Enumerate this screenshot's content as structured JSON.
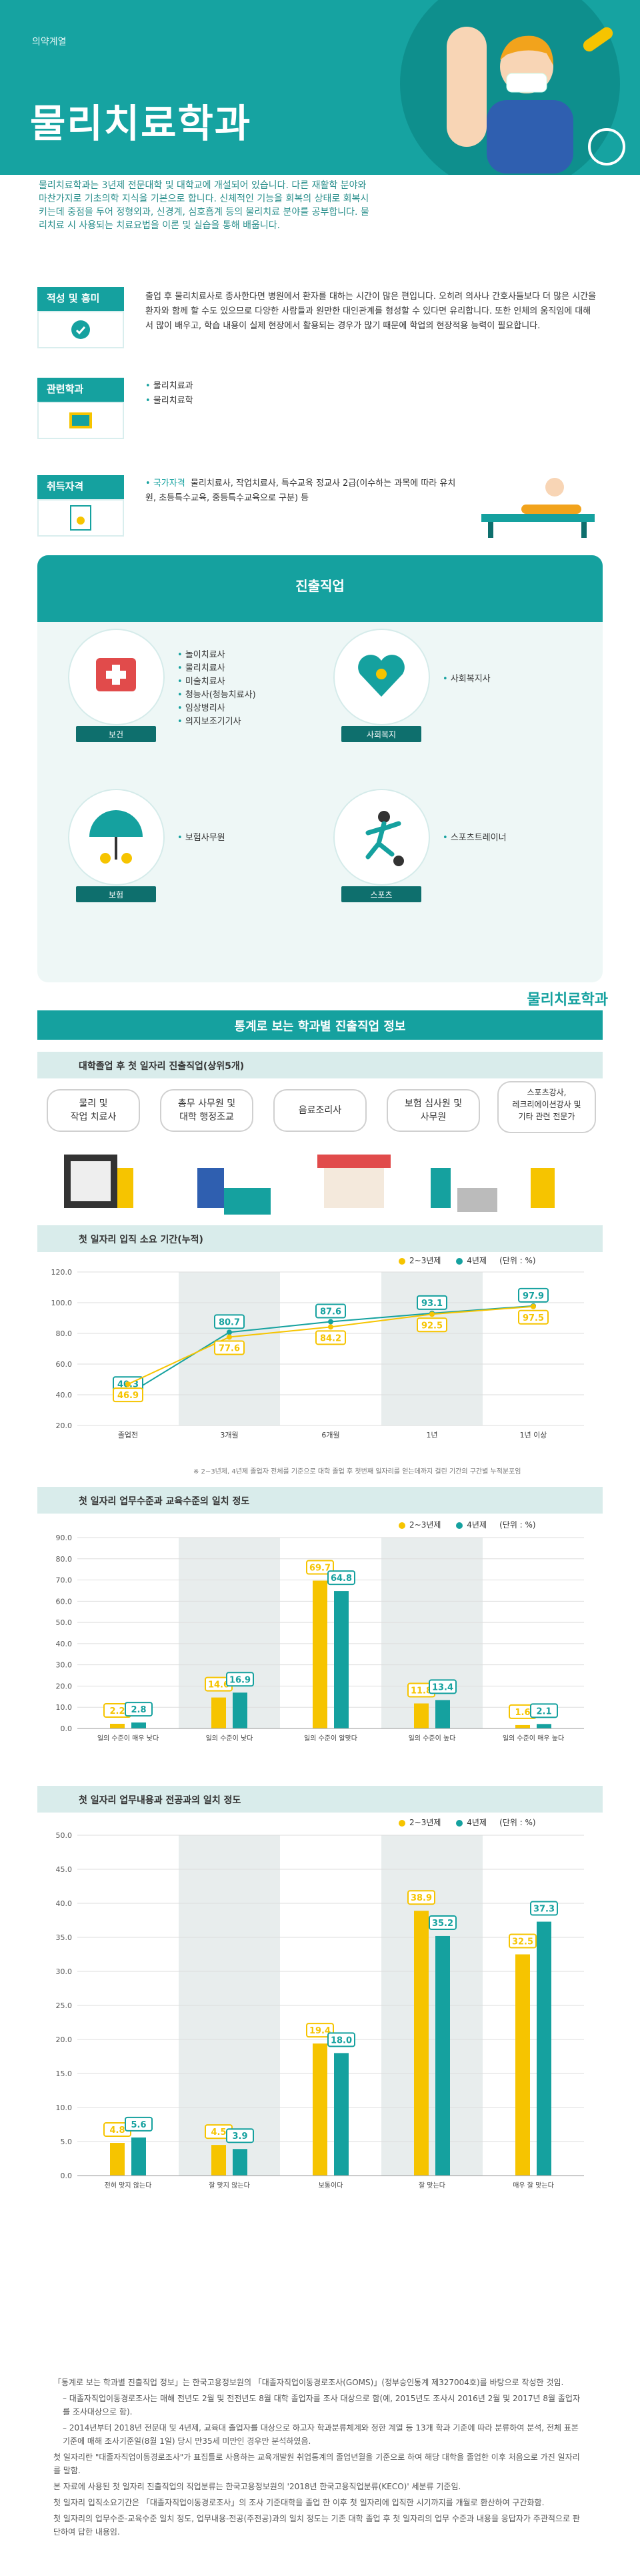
{
  "hero": {
    "department": "의약계열",
    "title": "물리치료학과",
    "intro": "물리치료학과는 3년제 전문대학 및 대학교에 개설되어 있습니다. 다른 재활학 분야와 마찬가지로 기초의학 지식을 기본으로 합니다. 신체적인 기능을 회복의 상태로 회복시키는데 중점을 두어 정형외과, 신경계, 심호흡계 등의 물리치료 분야를 공부합니다. 물리치료 시 사용되는 치료요법을 이론 및 실습을 통해 배웁니다."
  },
  "aptitude": {
    "label": "적성 및 흥미",
    "text": "출업 후 물리치료사로 종사한다면 병원에서 환자를 대하는 시간이 많은 편입니다. 오히려 의사나 간호사들보다 더 많은 시간을 환자와 함께 할 수도 있으므로 다양한 사람들과 원만한 대인관계를 형성할 수 있다면 유리합니다. 또한 인체의 움직임에 대해서 많이 배우고, 학습 내용이 실제 현장에서 활용되는 경우가 많기 때문에 학업의 현장적용 능력이 필요합니다."
  },
  "related": {
    "label": "관련학과",
    "items": [
      "물리치료과",
      "물리치료학"
    ]
  },
  "licenses": {
    "label": "취득자격",
    "prefix": "국가자격",
    "text": "물리치료사, 작업치료사, 특수교육 정교사 2급(이수하는 과목에 따라 유치원, 초등특수교육, 중등특수교육으로 구분) 등"
  },
  "career": {
    "title": "진출직업",
    "groups": [
      {
        "tag": "보건",
        "icon": "medical-kit-icon",
        "jobs": [
          "놀이치료사",
          "물리치료사",
          "미술치료사",
          "청능사(청능치료사)",
          "임상병리사",
          "의지보조기기사"
        ]
      },
      {
        "tag": "사회복지",
        "icon": "heart-hands-icon",
        "jobs": [
          "사회복지사"
        ]
      },
      {
        "tag": "보험",
        "icon": "umbrella-icon",
        "jobs": [
          "보험사무원"
        ]
      },
      {
        "tag": "스포츠",
        "icon": "soccer-player-icon",
        "jobs": [
          "스포츠트레이너"
        ]
      }
    ]
  },
  "stats": {
    "dept_tag": "물리치료학과",
    "header": "통계로 보는 학과별 진출직업 정보",
    "top_jobs": {
      "title": "대학졸업 후 첫 일자리 진출직업(상위5개)",
      "jobs": [
        "물리 및\n작업 치료사",
        "총무 사무원 및\n대학 행정조교",
        "음료조리사",
        "보험 심사원 및\n사무원",
        "스포츠강사,\n레크리에이션강사 및\n기타 관련 전문가"
      ]
    },
    "unit": "(단위 : %)",
    "legend_a": "2~3년제",
    "legend_b": "4년제",
    "colors": {
      "a": "#f6c400",
      "b": "#15a19f"
    }
  },
  "chart_data": [
    {
      "type": "line",
      "title": "첫 일자리 입직 소요 기간(누적)",
      "categories": [
        "졸업전",
        "3개월",
        "6개월",
        "1년",
        "1년 이상"
      ],
      "series": [
        {
          "name": "2~3년제",
          "values": [
            46.9,
            77.6,
            84.2,
            92.5,
            97.5
          ]
        },
        {
          "name": "4년제",
          "values": [
            40.3,
            80.7,
            87.6,
            93.1,
            97.9
          ]
        }
      ],
      "ylim": [
        20,
        120
      ],
      "yticks": [
        "120.0",
        "100.0",
        "80.0",
        "60.0",
        "40.0",
        "20.0"
      ],
      "footnote": "※ 2~3년제, 4년제 졸업자 전체를 기준으로 대학 졸업 후 첫번째 일자리를 얻는데까지 걸린 기간의 구간별 누적분포임",
      "legend": "top-right"
    },
    {
      "type": "bar",
      "title": "첫 일자리 업무수준과 교육수준의 일치 정도",
      "categories": [
        "일의 수준이 매우 낮다",
        "일의 수준이 낮다",
        "일의 수준이 알맞다",
        "일의 수준이 높다",
        "일의 수준이 매우 높다"
      ],
      "series": [
        {
          "name": "2~3년제",
          "values": [
            2.2,
            14.6,
            69.7,
            11.8,
            1.6
          ]
        },
        {
          "name": "4년제",
          "values": [
            2.8,
            16.9,
            64.8,
            13.4,
            2.1
          ]
        }
      ],
      "ylim": [
        0,
        90
      ],
      "yticks": [
        "90.0",
        "80.0",
        "70.0",
        "60.0",
        "50.0",
        "40.0",
        "30.0",
        "20.0",
        "10.0",
        "0.0"
      ],
      "legend": "top-right"
    },
    {
      "type": "bar",
      "title": "첫 일자리 업무내용과 전공과의 일치 정도",
      "categories": [
        "전혀 맞지 않는다",
        "잘 맞지 않는다",
        "보통이다",
        "잘 맞는다",
        "매우 잘 맞는다"
      ],
      "series": [
        {
          "name": "2~3년제",
          "values": [
            4.8,
            4.5,
            19.4,
            38.9,
            32.5
          ]
        },
        {
          "name": "4년제",
          "values": [
            5.6,
            3.9,
            18.0,
            35.2,
            37.3
          ]
        }
      ],
      "ylim": [
        0,
        50
      ],
      "yticks": [
        "50.0",
        "45.0",
        "40.0",
        "35.0",
        "30.0",
        "25.0",
        "20.0",
        "15.0",
        "10.0",
        "5.0",
        "0.0"
      ],
      "legend": "top-right"
    }
  ],
  "notes": [
    "「통계로 보는 학과별 진출직업 정보」는 한국고용정보원의 「대졸자직업이동경로조사(GOMS)」(정부승인통계 제327004호)를 바탕으로 작성한 것임.",
    "– 대졸자직업이동경로조사는 매해 전년도 2월 및 전전년도 8월 대학 졸업자를 조사 대상으로 함(예, 2015년도 조사시 2016년 2월 및 2017년 8월 졸업자를 조사대상으로 함).",
    "– 2014년부터 2018년 전문대 및 4년제, 교육대 졸업자를 대상으로 하고자 학과분류체계와 정한 계열 등 13개 학과 기준에 따라 분류하여 분석, 전체 표본 기준에 매해 조사기준일(8월 1일) 당시 만35세 미만인 경우만 분석하였음.",
    "첫 일자리란 \"대졸자직업이동경로조사\"가 표집틀로 사용하는 교육개발원 취업통계의 졸업년월을 기준으로 하여 해당 대학을 졸업한 이후 처음으로 가진 일자리를 말함.",
    "본 자료에 사용된 첫 일자리 진출직업의 직업분류는 한국고용정보원의 '2018년 한국고용직업분류(KECO)' 세분류 기준임.",
    "첫 일자리 입직소요기간은 「대졸자직업이동경로조사」의 조사 기준대학을 졸업 한 이후 첫 일자리에 입직한 시기까지를 개월로 환산하여 구간화함.",
    "첫 일자리의 업무수준-교육수준 일치 정도, 업무내용-전공(주전공)과의 일치 정도는 기존 대학 졸업 후 첫 일자리의 업무 수준과 내용을 응답자가 주관적으로 판단하여 답한 내용임."
  ]
}
